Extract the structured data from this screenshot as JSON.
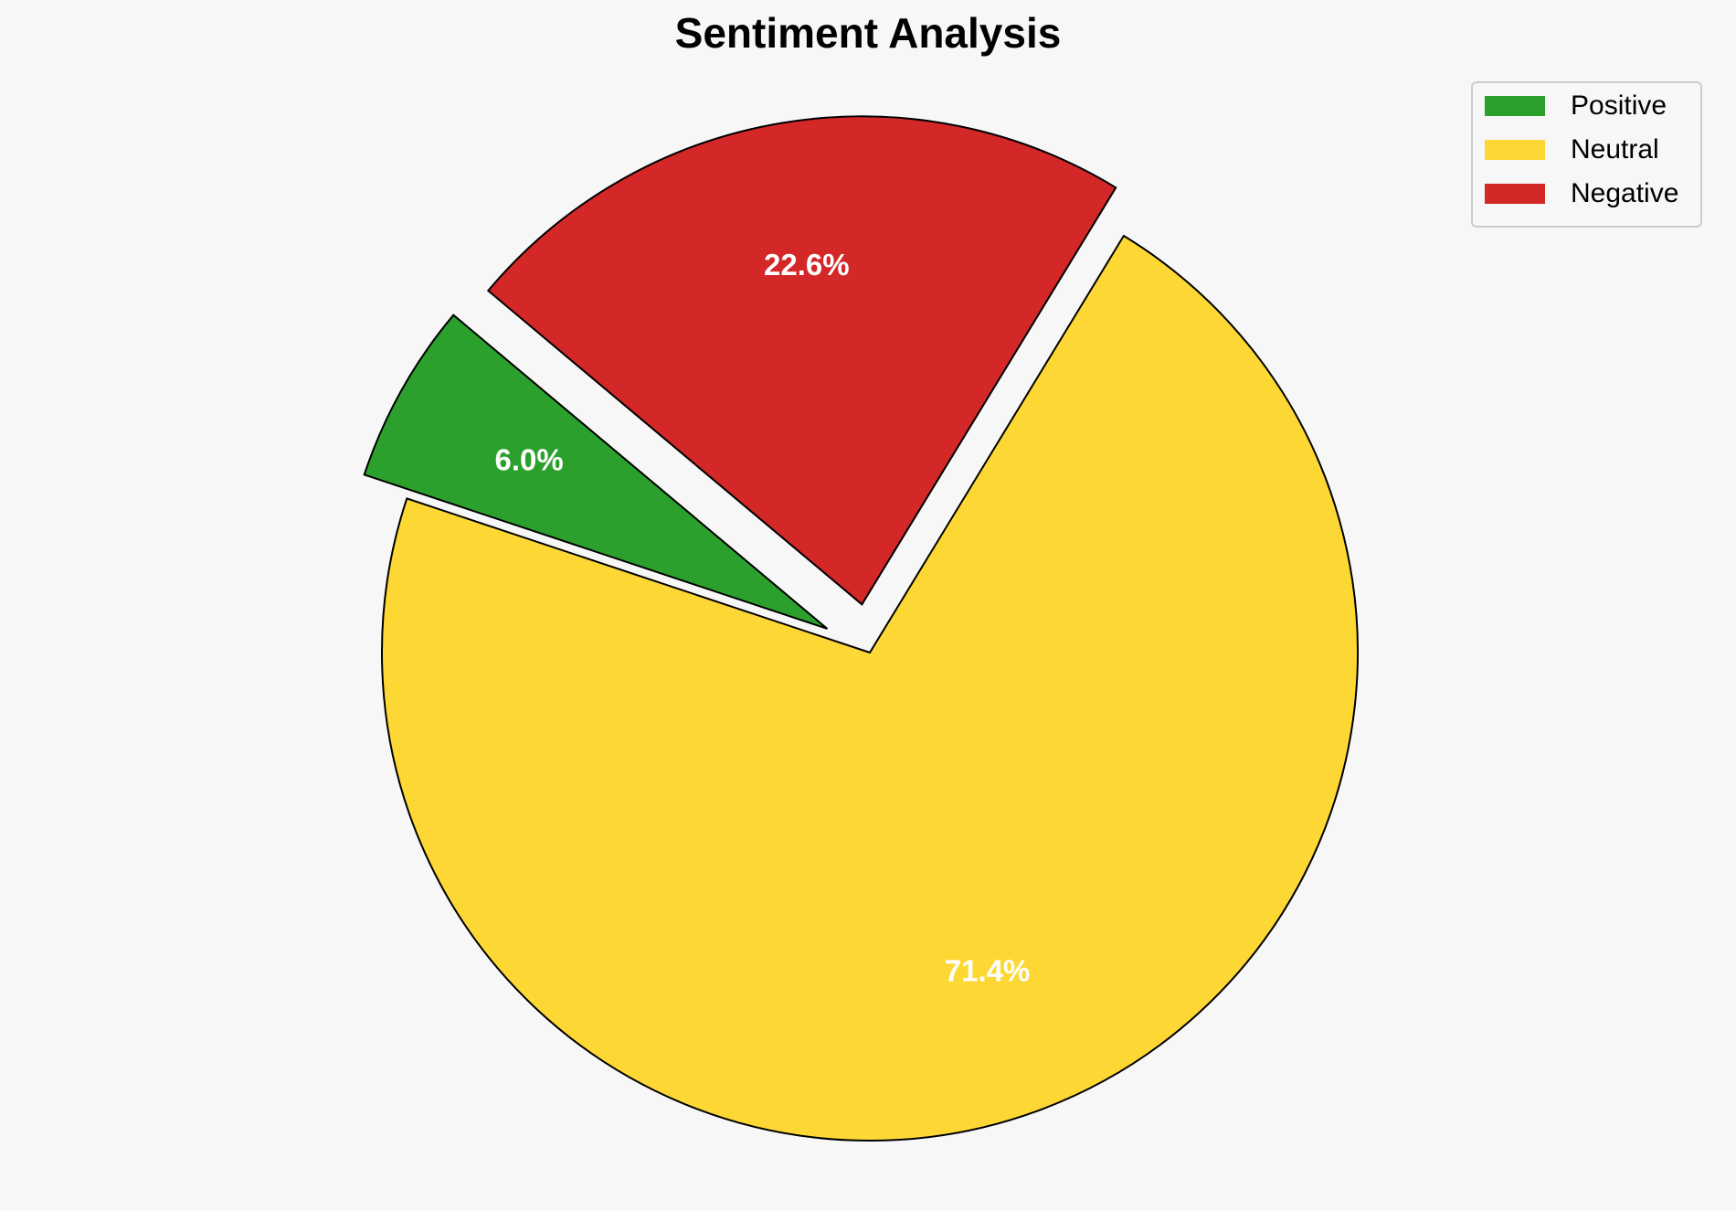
{
  "chart_data": {
    "type": "pie",
    "title": "Sentiment Analysis",
    "categories": [
      "Positive",
      "Neutral",
      "Negative"
    ],
    "values": [
      6.0,
      71.4,
      22.6
    ],
    "value_labels": [
      "6.0%",
      "71.4%",
      "22.6%"
    ],
    "colors": [
      "#2ca02c",
      "#fdd835",
      "#d32728"
    ],
    "explode": [
      0.1,
      0,
      0.1
    ],
    "start_angle": 140,
    "legend": "upper right"
  }
}
